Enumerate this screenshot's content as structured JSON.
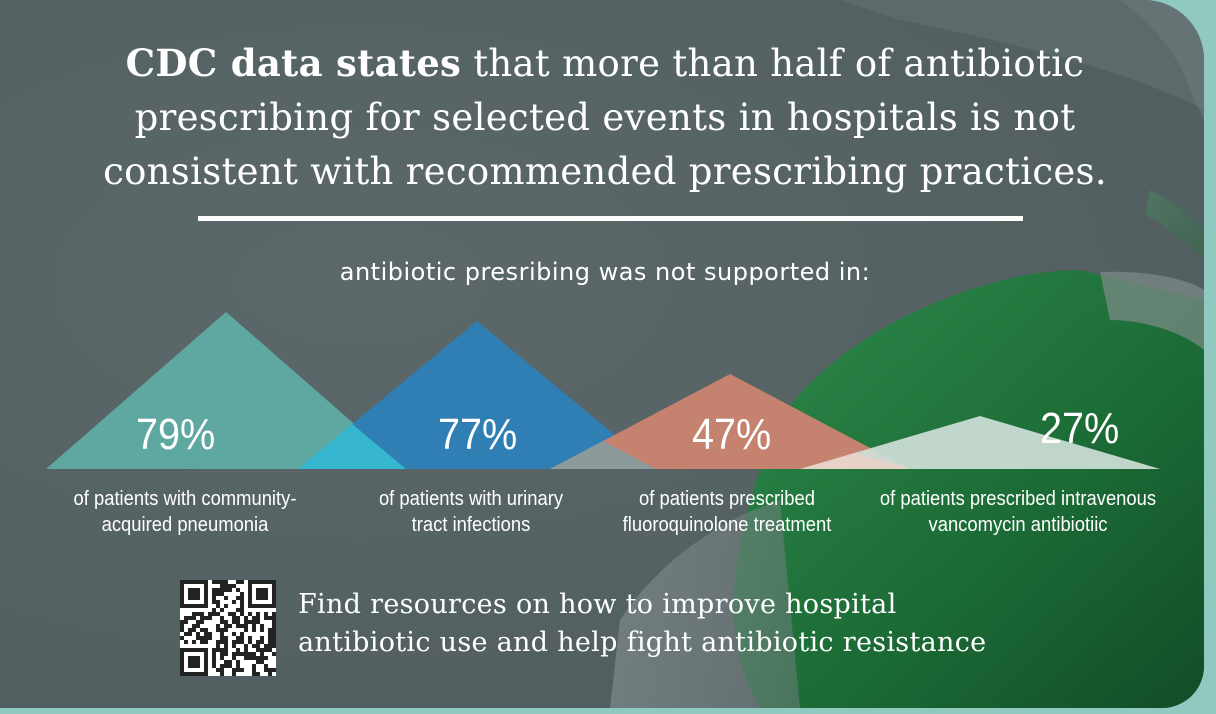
{
  "headline": {
    "bold": "CDC data states",
    "rest": " that more than half of antibiotic prescribing for selected events in hospitals is not consistent with recommended prescribing practices."
  },
  "subhead": "antibiotic presribing was not supported in:",
  "stats": [
    {
      "percent": "79%",
      "caption_line1": "of patients with community-",
      "caption_line2": "acquired pneumonia",
      "color": "#5fa8a2"
    },
    {
      "percent": "77%",
      "caption_line1": "of patients with urinary",
      "caption_line2": "tract infections",
      "color": "#2f7fb5"
    },
    {
      "percent": "47%",
      "caption_line1": "of patients prescribed",
      "caption_line2": "fluoroquinolone treatment",
      "color": "#c4826f"
    },
    {
      "percent": "27%",
      "caption_line1": "of patients prescribed intravenous",
      "caption_line2": "vancomycin antibiotiic",
      "color": "#cfe0d8"
    }
  ],
  "footer": {
    "line1": "Find resources on how to improve hospital",
    "line2": "antibiotic use and help fight antibiotic resistance"
  },
  "colors": {
    "background": "#566364",
    "pill_green": "#1f6f3a",
    "overlap_teal": "#37b6cf"
  }
}
